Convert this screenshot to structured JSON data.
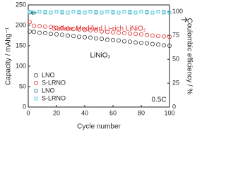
{
  "chart_data": {
    "type": "scatter",
    "xlabel": "Cycle number",
    "ylabel": "Capacity / mAhg⁻¹",
    "y2label": "Coulombic efficiency / %",
    "x": [
      1,
      4,
      8,
      12,
      16,
      20,
      24,
      28,
      32,
      36,
      40,
      44,
      48,
      52,
      56,
      60,
      64,
      68,
      72,
      76,
      80,
      84,
      88,
      92,
      96,
      100
    ],
    "series": [
      {
        "name": "LNO",
        "color": "#333333",
        "axis": "y",
        "marker": "circle",
        "values": [
          185,
          184,
          182,
          181,
          179,
          178,
          177,
          175,
          174,
          172,
          171,
          170,
          168,
          167,
          165,
          164,
          163,
          161,
          160,
          158,
          157,
          156,
          154,
          153,
          151,
          150
        ]
      },
      {
        "name": "S-LRNO",
        "color": "#e03030",
        "axis": "y",
        "marker": "circle",
        "values": [
          208,
          199,
          198,
          197,
          196,
          194,
          193,
          192,
          191,
          190,
          189,
          188,
          187,
          185,
          184,
          183,
          182,
          181,
          180,
          179,
          178,
          176,
          175,
          174,
          173,
          172
        ]
      },
      {
        "name": "LNO",
        "color": "#2a86a8",
        "axis": "y2",
        "marker": "square",
        "values": [
          99,
          99,
          100,
          99,
          99,
          100,
          99,
          99,
          100,
          99,
          99,
          100,
          99,
          99,
          100,
          99,
          99,
          100,
          99,
          99,
          100,
          99,
          99,
          100,
          99,
          99
        ]
      },
      {
        "name": "S-LRNO",
        "color": "#3fd0e6",
        "axis": "y2",
        "marker": "square",
        "values": [
          100,
          99,
          100,
          100,
          99,
          100,
          100,
          99,
          100,
          100,
          99,
          100,
          100,
          99,
          100,
          100,
          99,
          100,
          100,
          99,
          100,
          100,
          99,
          100,
          100,
          99
        ]
      }
    ],
    "xlim": [
      0,
      100
    ],
    "xticks": [
      0,
      20,
      40,
      60,
      80,
      100
    ],
    "ylim": [
      0,
      250
    ],
    "yticks": [
      0,
      50,
      100,
      150,
      200,
      250
    ],
    "y2lim": [
      0,
      107
    ],
    "y2ticks": [
      0,
      25,
      50,
      75,
      100
    ],
    "annotations": [
      "Sulfate Modified Li-rich LiNiO₂",
      "LiNiO₂",
      "0.5C"
    ],
    "legend": "lower left"
  }
}
